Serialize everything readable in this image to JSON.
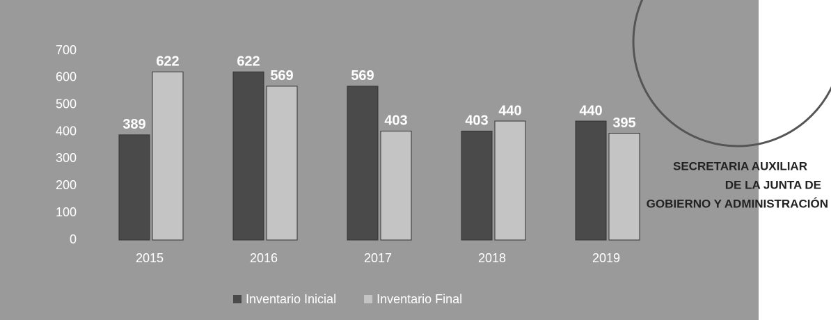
{
  "chart_data": {
    "type": "bar",
    "categories": [
      "2015",
      "2016",
      "2017",
      "2018",
      "2019"
    ],
    "series": [
      {
        "name": "Inventario Inicial",
        "color": "#4a4a4a",
        "values": [
          389,
          622,
          569,
          403,
          440
        ]
      },
      {
        "name": "Inventario Final",
        "color": "#c4c4c4",
        "values": [
          622,
          569,
          403,
          440,
          395
        ]
      }
    ],
    "ylim": [
      0,
      700
    ],
    "yticks": [
      0,
      100,
      200,
      300,
      400,
      500,
      600,
      700
    ],
    "grid": false,
    "legend": "bottom",
    "annotations": [
      "SECRETARIA AUXILIAR",
      "DE LA JUNTA DE",
      "GOBIERNO Y ADMINISTRACIÓN"
    ]
  }
}
